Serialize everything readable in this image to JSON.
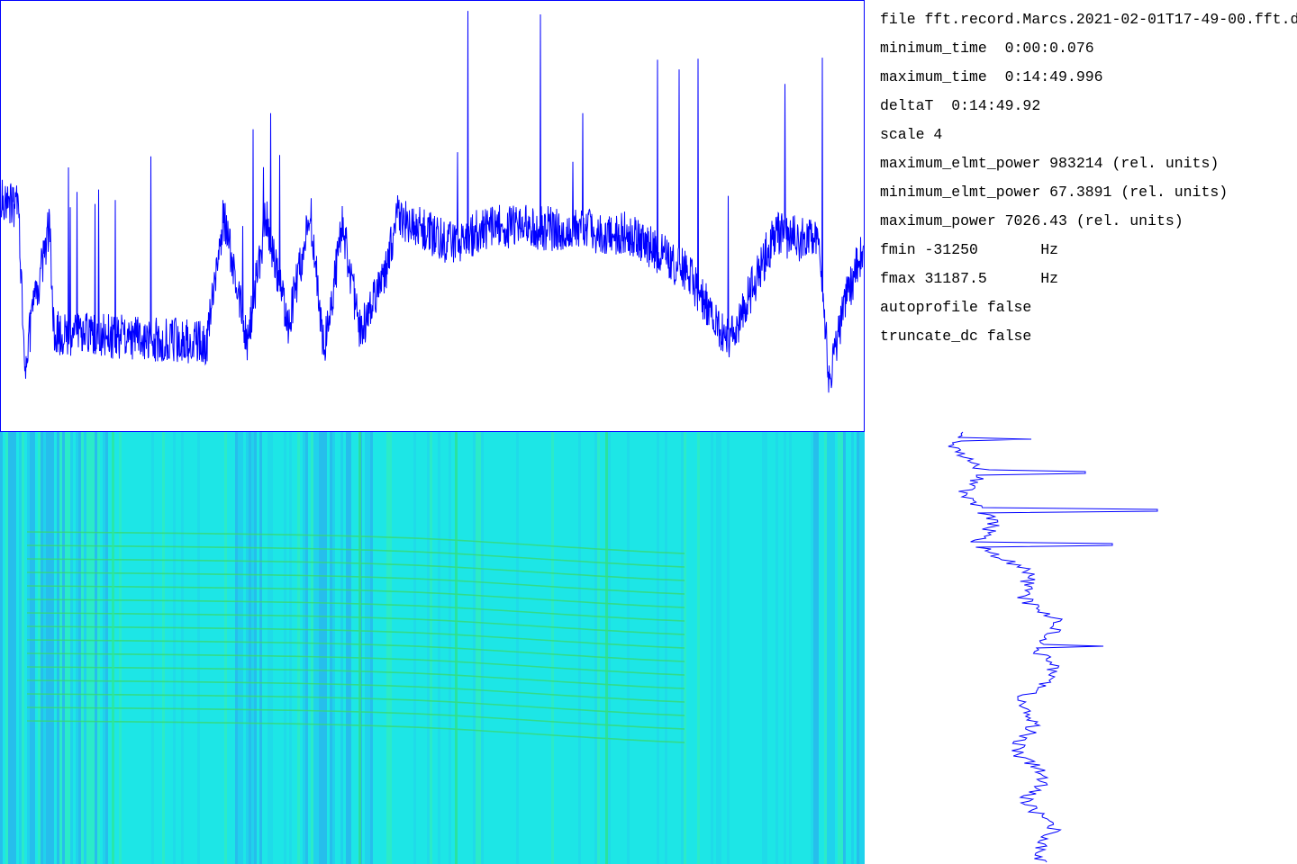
{
  "info": {
    "lines": [
      "file fft.record.Marcs.2021-02-01T17-49-00.fft.d",
      "minimum_time  0:00:0.076",
      "maximum_time  0:14:49.996",
      "deltaT  0:14:49.92",
      "scale 4",
      "maximum_elmt_power 983214 (rel. units)",
      "minimum_elmt_power 67.3891 (rel. units)",
      "maximum_power 7026.43 (rel. units)",
      "fmin -31250       Hz",
      "fmax 31187.5      Hz",
      "autoprofile false",
      "truncate_dc false"
    ]
  }
}
